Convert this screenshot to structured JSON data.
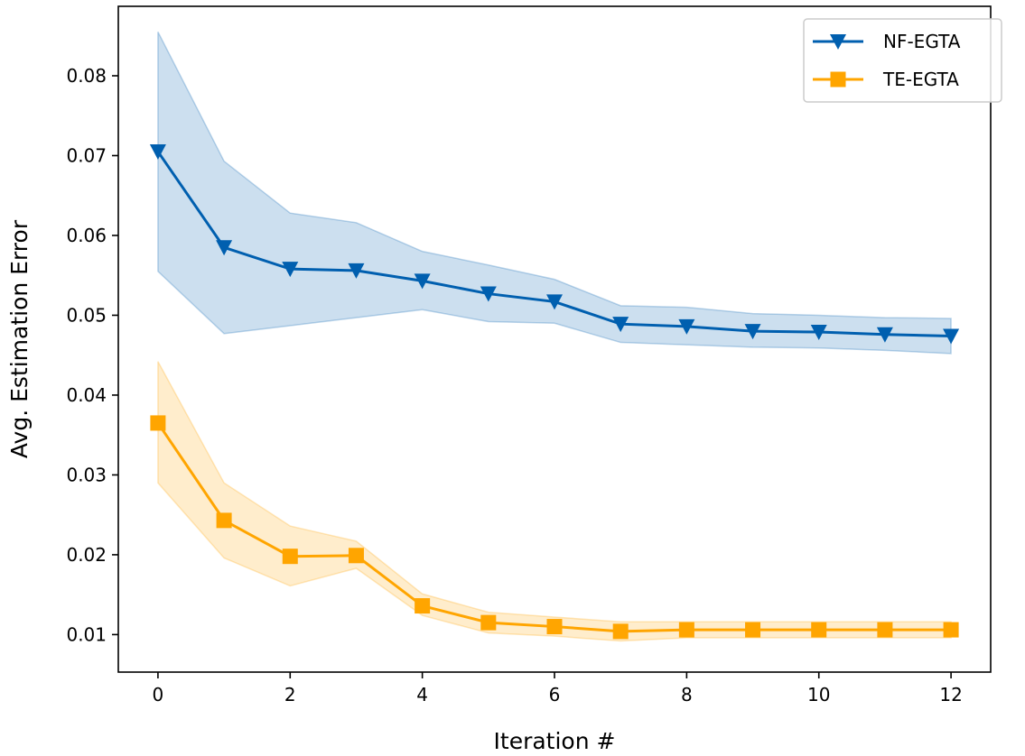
{
  "chart_data": {
    "type": "line",
    "title": "",
    "xlabel": "Iteration #",
    "ylabel": "Avg. Estimation Error",
    "xlim": [
      -0.6,
      12.6
    ],
    "ylim": [
      0.0053,
      0.0887
    ],
    "x_ticks": [
      0,
      2,
      4,
      6,
      8,
      10,
      12
    ],
    "x_tick_labels": [
      "0",
      "2",
      "4",
      "6",
      "8",
      "10",
      "12"
    ],
    "y_ticks": [
      0.01,
      0.02,
      0.03,
      0.04,
      0.05,
      0.06,
      0.07,
      0.08
    ],
    "y_tick_labels": [
      "0.01",
      "0.02",
      "0.03",
      "0.04",
      "0.05",
      "0.06",
      "0.07",
      "0.08"
    ],
    "grid": false,
    "legend_position": "top-right",
    "x": [
      0,
      1,
      2,
      3,
      4,
      5,
      6,
      7,
      8,
      9,
      10,
      11,
      12
    ],
    "series": [
      {
        "name": "NF-EGTA",
        "color": "#005faf",
        "marker": "triangle-down",
        "values": [
          0.0705,
          0.0585,
          0.0558,
          0.0556,
          0.0543,
          0.0527,
          0.0517,
          0.0489,
          0.0486,
          0.048,
          0.0479,
          0.0476,
          0.0474
        ],
        "lower": [
          0.0555,
          0.0477,
          0.0487,
          0.0497,
          0.0507,
          0.0492,
          0.049,
          0.0466,
          0.0463,
          0.046,
          0.0459,
          0.0456,
          0.0452
        ],
        "upper": [
          0.0855,
          0.0693,
          0.0628,
          0.0616,
          0.058,
          0.0563,
          0.0545,
          0.0512,
          0.051,
          0.0502,
          0.05,
          0.0497,
          0.0496
        ]
      },
      {
        "name": "TE-EGTA",
        "color": "#ffa500",
        "marker": "square",
        "values": [
          0.0365,
          0.0243,
          0.0198,
          0.0199,
          0.0136,
          0.0115,
          0.011,
          0.0104,
          0.0106,
          0.0106,
          0.0106,
          0.0106,
          0.0106
        ],
        "lower": [
          0.029,
          0.0196,
          0.0161,
          0.0183,
          0.0124,
          0.0102,
          0.0098,
          0.0092,
          0.0096,
          0.0096,
          0.0096,
          0.0096,
          0.0096
        ],
        "upper": [
          0.0442,
          0.029,
          0.0236,
          0.0217,
          0.0151,
          0.0128,
          0.0122,
          0.0116,
          0.0116,
          0.0116,
          0.0116,
          0.0116,
          0.0116
        ]
      }
    ]
  }
}
